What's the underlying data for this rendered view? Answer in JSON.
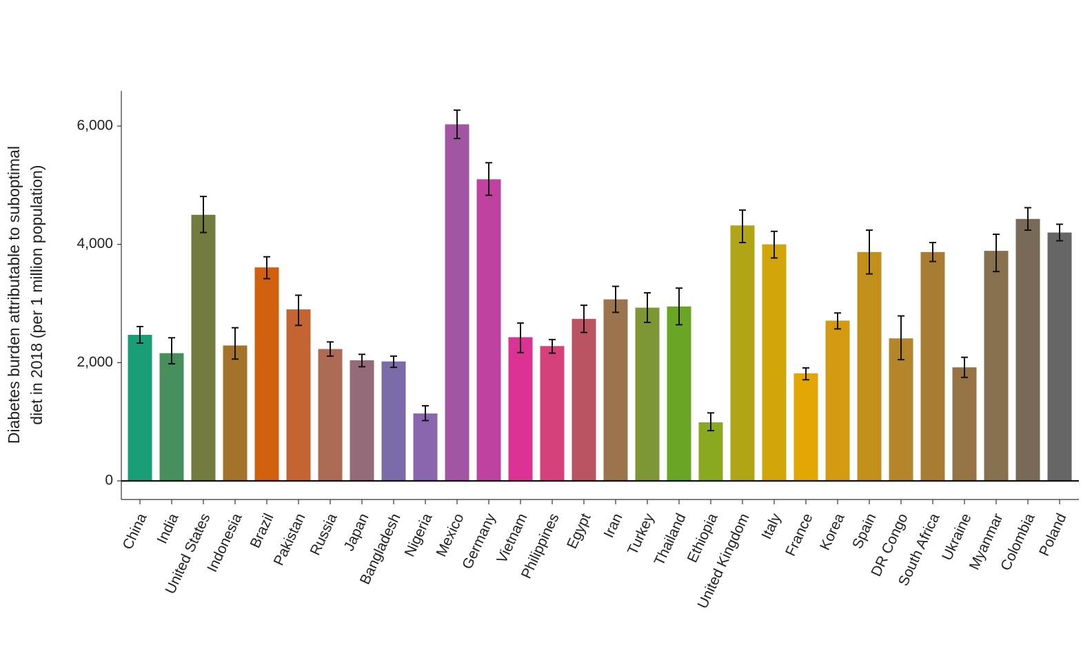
{
  "chart_data": {
    "type": "bar",
    "title": "",
    "xlabel": "",
    "ylabel_lines": [
      "Diabetes burden attributable to suboptimal",
      "diet in 2018 (per 1 million population)"
    ],
    "ylim": [
      -300,
      6600
    ],
    "yticks": [
      0,
      2000,
      4000,
      6000
    ],
    "ytick_labels": [
      "0",
      "2,000",
      "4,000",
      "6,000"
    ],
    "grid": false,
    "legend": "none",
    "error_bars": true,
    "categories": [
      "China",
      "India",
      "United States",
      "Indonesia",
      "Brazil",
      "Pakistan",
      "Russia",
      "Japan",
      "Bangladesh",
      "Nigeria",
      "Mexico",
      "Germany",
      "Vietnam",
      "Philippines",
      "Egypt",
      "Iran",
      "Turkey",
      "Thailand",
      "Ethiopia",
      "United Kingdom",
      "Italy",
      "France",
      "Korea",
      "Spain",
      "DR Congo",
      "South Africa",
      "Ukraine",
      "Myanmar",
      "Colombia",
      "Poland"
    ],
    "values": [
      2470,
      2160,
      4500,
      2290,
      3610,
      2900,
      2230,
      2040,
      2020,
      1140,
      6030,
      5100,
      2430,
      2280,
      2740,
      3070,
      2930,
      2950,
      990,
      4320,
      4000,
      1820,
      2710,
      3870,
      2410,
      3870,
      1920,
      3890,
      4430,
      4200
    ],
    "error_lower": [
      2330,
      1980,
      4200,
      2060,
      3420,
      2630,
      2110,
      1930,
      1920,
      1020,
      5790,
      4830,
      2170,
      2160,
      2510,
      2850,
      2680,
      2640,
      850,
      4030,
      3770,
      1710,
      2570,
      3500,
      2050,
      3710,
      1750,
      3540,
      4240,
      4060
    ],
    "error_upper": [
      2610,
      2420,
      4810,
      2590,
      3790,
      3140,
      2350,
      2140,
      2110,
      1270,
      6270,
      5380,
      2670,
      2390,
      2970,
      3290,
      3180,
      3260,
      1150,
      4580,
      4220,
      1910,
      2840,
      4240,
      2790,
      4030,
      2090,
      4170,
      4620,
      4340
    ],
    "colors": [
      "#1a9e77",
      "#468e5c",
      "#747b3e",
      "#a3722b",
      "#d0600d",
      "#c46432",
      "#ad6a55",
      "#946b78",
      "#7b6ca9",
      "#8a66ae",
      "#a255a2",
      "#c042a0",
      "#dc3293",
      "#d44079",
      "#ba5462",
      "#9b744e",
      "#7e9736",
      "#6aa623",
      "#8aa920",
      "#b0a615",
      "#d2a609",
      "#e2a704",
      "#d39a10",
      "#c28f1b",
      "#b4852b",
      "#a77c33",
      "#967345",
      "#86704d",
      "#786a57",
      "#666666"
    ]
  }
}
